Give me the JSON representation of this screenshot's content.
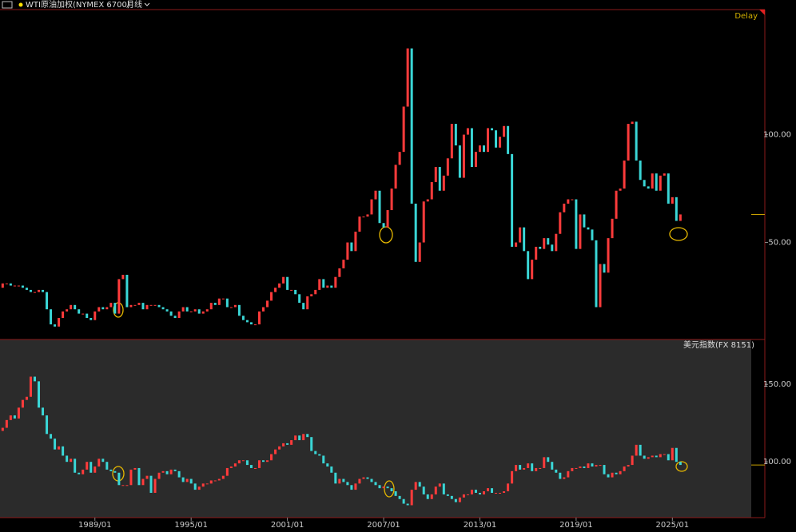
{
  "header": {
    "period": "月线",
    "status": "Delay"
  },
  "chart_data": [
    {
      "type": "candlestick",
      "title": "WTI原油加权(NYMEX 6700)",
      "up_color": "#ff3b3b",
      "down_color": "#3ad6d6",
      "x": [
        "1983/01",
        "1983/04",
        "1983/07",
        "1983/10",
        "1984/01",
        "1984/04",
        "1984/07",
        "1984/10",
        "1985/01",
        "1985/04",
        "1985/07",
        "1985/10",
        "1986/01",
        "1986/04",
        "1986/07",
        "1986/10",
        "1987/01",
        "1987/04",
        "1987/07",
        "1987/10",
        "1988/01",
        "1988/04",
        "1988/07",
        "1988/10",
        "1989/01",
        "1989/04",
        "1989/07",
        "1989/10",
        "1990/01",
        "1990/04",
        "1990/07",
        "1990/10",
        "1991/01",
        "1991/04",
        "1991/07",
        "1991/10",
        "1992/01",
        "1992/04",
        "1992/07",
        "1992/10",
        "1993/01",
        "1993/04",
        "1993/07",
        "1993/10",
        "1994/01",
        "1994/04",
        "1994/07",
        "1994/10",
        "1995/01",
        "1995/04",
        "1995/07",
        "1995/10",
        "1996/01",
        "1996/04",
        "1996/07",
        "1996/10",
        "1997/01",
        "1997/04",
        "1997/07",
        "1997/10",
        "1998/01",
        "1998/04",
        "1998/07",
        "1998/10",
        "1999/01",
        "1999/04",
        "1999/07",
        "1999/10",
        "2000/01",
        "2000/04",
        "2000/07",
        "2000/10",
        "2001/01",
        "2001/04",
        "2001/07",
        "2001/10",
        "2002/01",
        "2002/04",
        "2002/07",
        "2002/10",
        "2003/01",
        "2003/04",
        "2003/07",
        "2003/10",
        "2004/01",
        "2004/04",
        "2004/07",
        "2004/10",
        "2005/01",
        "2005/04",
        "2005/07",
        "2005/10",
        "2006/01",
        "2006/04",
        "2006/07",
        "2006/10",
        "2007/01",
        "2007/04",
        "2007/07",
        "2007/10",
        "2008/01",
        "2008/04",
        "2008/07",
        "2008/10",
        "2009/01",
        "2009/04",
        "2009/07",
        "2009/10",
        "2010/01",
        "2010/04",
        "2010/07",
        "2010/10",
        "2011/01",
        "2011/04",
        "2011/07",
        "2011/10",
        "2012/01",
        "2012/04",
        "2012/07",
        "2012/10",
        "2013/01",
        "2013/04",
        "2013/07",
        "2013/10",
        "2014/01",
        "2014/04",
        "2014/07",
        "2014/10",
        "2015/01",
        "2015/04",
        "2015/07",
        "2015/10",
        "2016/01",
        "2016/04",
        "2016/07",
        "2016/10",
        "2017/01",
        "2017/04",
        "2017/07",
        "2017/10",
        "2018/01",
        "2018/04",
        "2018/07",
        "2018/10",
        "2019/01",
        "2019/04",
        "2019/07",
        "2019/10",
        "2020/01",
        "2020/04",
        "2020/07",
        "2020/10",
        "2021/01",
        "2021/04",
        "2021/07",
        "2021/10",
        "2022/01",
        "2022/04",
        "2022/07",
        "2022/10",
        "2023/01",
        "2023/04",
        "2023/07",
        "2023/10",
        "2024/01",
        "2024/04",
        "2024/07",
        "2024/10",
        "2025/01",
        "2025/04",
        "2025/07"
      ],
      "values": [
        29,
        31,
        31,
        30,
        30,
        30,
        29,
        28,
        27,
        27,
        28,
        27,
        19,
        12,
        11,
        15,
        18,
        19,
        21,
        19,
        17,
        17,
        15,
        14,
        18,
        20,
        19,
        20,
        22,
        17,
        33,
        35,
        20,
        21,
        21,
        22,
        19,
        21,
        21,
        21,
        20,
        19,
        18,
        16,
        15,
        18,
        20,
        18,
        18,
        19,
        17,
        18,
        19,
        22,
        21,
        24,
        24,
        20,
        20,
        21,
        16,
        14,
        13,
        12,
        12,
        18,
        20,
        23,
        27,
        29,
        31,
        34,
        28,
        28,
        26,
        22,
        19,
        25,
        26,
        28,
        33,
        29,
        30,
        29,
        34,
        38,
        42,
        50,
        46,
        55,
        62,
        62,
        63,
        70,
        74,
        59,
        57,
        65,
        75,
        86,
        92,
        113,
        140,
        68,
        41,
        50,
        69,
        70,
        78,
        85,
        74,
        81,
        89,
        105,
        95,
        80,
        100,
        103,
        85,
        92,
        95,
        92,
        103,
        102,
        94,
        99,
        104,
        91,
        48,
        50,
        57,
        46,
        33,
        42,
        48,
        47,
        52,
        49,
        46,
        54,
        64,
        68,
        70,
        70,
        47,
        63,
        57,
        56,
        51,
        20,
        40,
        36,
        52,
        61,
        74,
        75,
        88,
        105,
        106,
        88,
        79,
        76,
        75,
        82,
        74,
        81,
        82,
        68,
        71,
        60,
        63
      ],
      "xlim": [
        "1983/02",
        "2029/12"
      ],
      "ylim": [
        5,
        158
      ],
      "yticks": [
        {
          "value": 50,
          "label": "50.00"
        },
        {
          "value": 100,
          "label": "100.00"
        }
      ]
    },
    {
      "type": "candlestick",
      "title": "美元指数(FX 8151)",
      "up_color": "#ff3b3b",
      "down_color": "#3ad6d6",
      "x": [
        "1983/01",
        "1983/04",
        "1983/07",
        "1983/10",
        "1984/01",
        "1984/04",
        "1984/07",
        "1984/10",
        "1985/01",
        "1985/04",
        "1985/07",
        "1985/10",
        "1986/01",
        "1986/04",
        "1986/07",
        "1986/10",
        "1987/01",
        "1987/04",
        "1987/07",
        "1987/10",
        "1988/01",
        "1988/04",
        "1988/07",
        "1988/10",
        "1989/01",
        "1989/04",
        "1989/07",
        "1989/10",
        "1990/01",
        "1990/04",
        "1990/07",
        "1990/10",
        "1991/01",
        "1991/04",
        "1991/07",
        "1991/10",
        "1992/01",
        "1992/04",
        "1992/07",
        "1992/10",
        "1993/01",
        "1993/04",
        "1993/07",
        "1993/10",
        "1994/01",
        "1994/04",
        "1994/07",
        "1994/10",
        "1995/01",
        "1995/04",
        "1995/07",
        "1995/10",
        "1996/01",
        "1996/04",
        "1996/07",
        "1996/10",
        "1997/01",
        "1997/04",
        "1997/07",
        "1997/10",
        "1998/01",
        "1998/04",
        "1998/07",
        "1998/10",
        "1999/01",
        "1999/04",
        "1999/07",
        "1999/10",
        "2000/01",
        "2000/04",
        "2000/07",
        "2000/10",
        "2001/01",
        "2001/04",
        "2001/07",
        "2001/10",
        "2002/01",
        "2002/04",
        "2002/07",
        "2002/10",
        "2003/01",
        "2003/04",
        "2003/07",
        "2003/10",
        "2004/01",
        "2004/04",
        "2004/07",
        "2004/10",
        "2005/01",
        "2005/04",
        "2005/07",
        "2005/10",
        "2006/01",
        "2006/04",
        "2006/07",
        "2006/10",
        "2007/01",
        "2007/04",
        "2007/07",
        "2007/10",
        "2008/01",
        "2008/04",
        "2008/07",
        "2008/10",
        "2009/01",
        "2009/04",
        "2009/07",
        "2009/10",
        "2010/01",
        "2010/04",
        "2010/07",
        "2010/10",
        "2011/01",
        "2011/04",
        "2011/07",
        "2011/10",
        "2012/01",
        "2012/04",
        "2012/07",
        "2012/10",
        "2013/01",
        "2013/04",
        "2013/07",
        "2013/10",
        "2014/01",
        "2014/04",
        "2014/07",
        "2014/10",
        "2015/01",
        "2015/04",
        "2015/07",
        "2015/10",
        "2016/01",
        "2016/04",
        "2016/07",
        "2016/10",
        "2017/01",
        "2017/04",
        "2017/07",
        "2017/10",
        "2018/01",
        "2018/04",
        "2018/07",
        "2018/10",
        "2019/01",
        "2019/04",
        "2019/07",
        "2019/10",
        "2020/01",
        "2020/04",
        "2020/07",
        "2020/10",
        "2021/01",
        "2021/04",
        "2021/07",
        "2021/10",
        "2022/01",
        "2022/04",
        "2022/07",
        "2022/10",
        "2023/01",
        "2023/04",
        "2023/07",
        "2023/10",
        "2024/01",
        "2024/04",
        "2024/07",
        "2024/10",
        "2025/01",
        "2025/04",
        "2025/07"
      ],
      "values": [
        120,
        122,
        127,
        130,
        128,
        135,
        140,
        142,
        155,
        152,
        135,
        130,
        118,
        115,
        108,
        110,
        104,
        100,
        102,
        93,
        92,
        95,
        100,
        93,
        97,
        102,
        100,
        95,
        94,
        93,
        85,
        85,
        85,
        95,
        96,
        85,
        89,
        91,
        80,
        89,
        93,
        94,
        92,
        95,
        94,
        90,
        87,
        89,
        86,
        82,
        84,
        86,
        86,
        88,
        88,
        89,
        91,
        96,
        97,
        99,
        101,
        101,
        98,
        96,
        96,
        101,
        100,
        101,
        105,
        108,
        110,
        112,
        111,
        114,
        117,
        114,
        118,
        116,
        107,
        105,
        104,
        99,
        97,
        93,
        86,
        89,
        87,
        85,
        82,
        86,
        89,
        90,
        89,
        87,
        85,
        83,
        84,
        83,
        81,
        78,
        76,
        73,
        72,
        82,
        87,
        84,
        79,
        76,
        79,
        84,
        86,
        79,
        78,
        76,
        74,
        77,
        79,
        79,
        82,
        80,
        79,
        81,
        83,
        80,
        80,
        80,
        81,
        86,
        94,
        98,
        95,
        96,
        99,
        94,
        96,
        96,
        103,
        100,
        95,
        93,
        89,
        90,
        94,
        96,
        96,
        97,
        96,
        99,
        97,
        98,
        98,
        92,
        90,
        93,
        92,
        94,
        97,
        98,
        104,
        111,
        104,
        102,
        103,
        104,
        103,
        105,
        105,
        101,
        109,
        100,
        98
      ],
      "xlim": [
        "1983/02",
        "2029/12"
      ],
      "ylim": [
        64,
        179
      ],
      "yticks": [
        {
          "value": 100,
          "label": "100.00"
        },
        {
          "value": 150,
          "label": "150.00"
        }
      ],
      "xticks": [
        "1989/01",
        "1995/01",
        "2001/01",
        "2007/01",
        "2013/01",
        "2019/01",
        "2025/01"
      ]
    }
  ]
}
